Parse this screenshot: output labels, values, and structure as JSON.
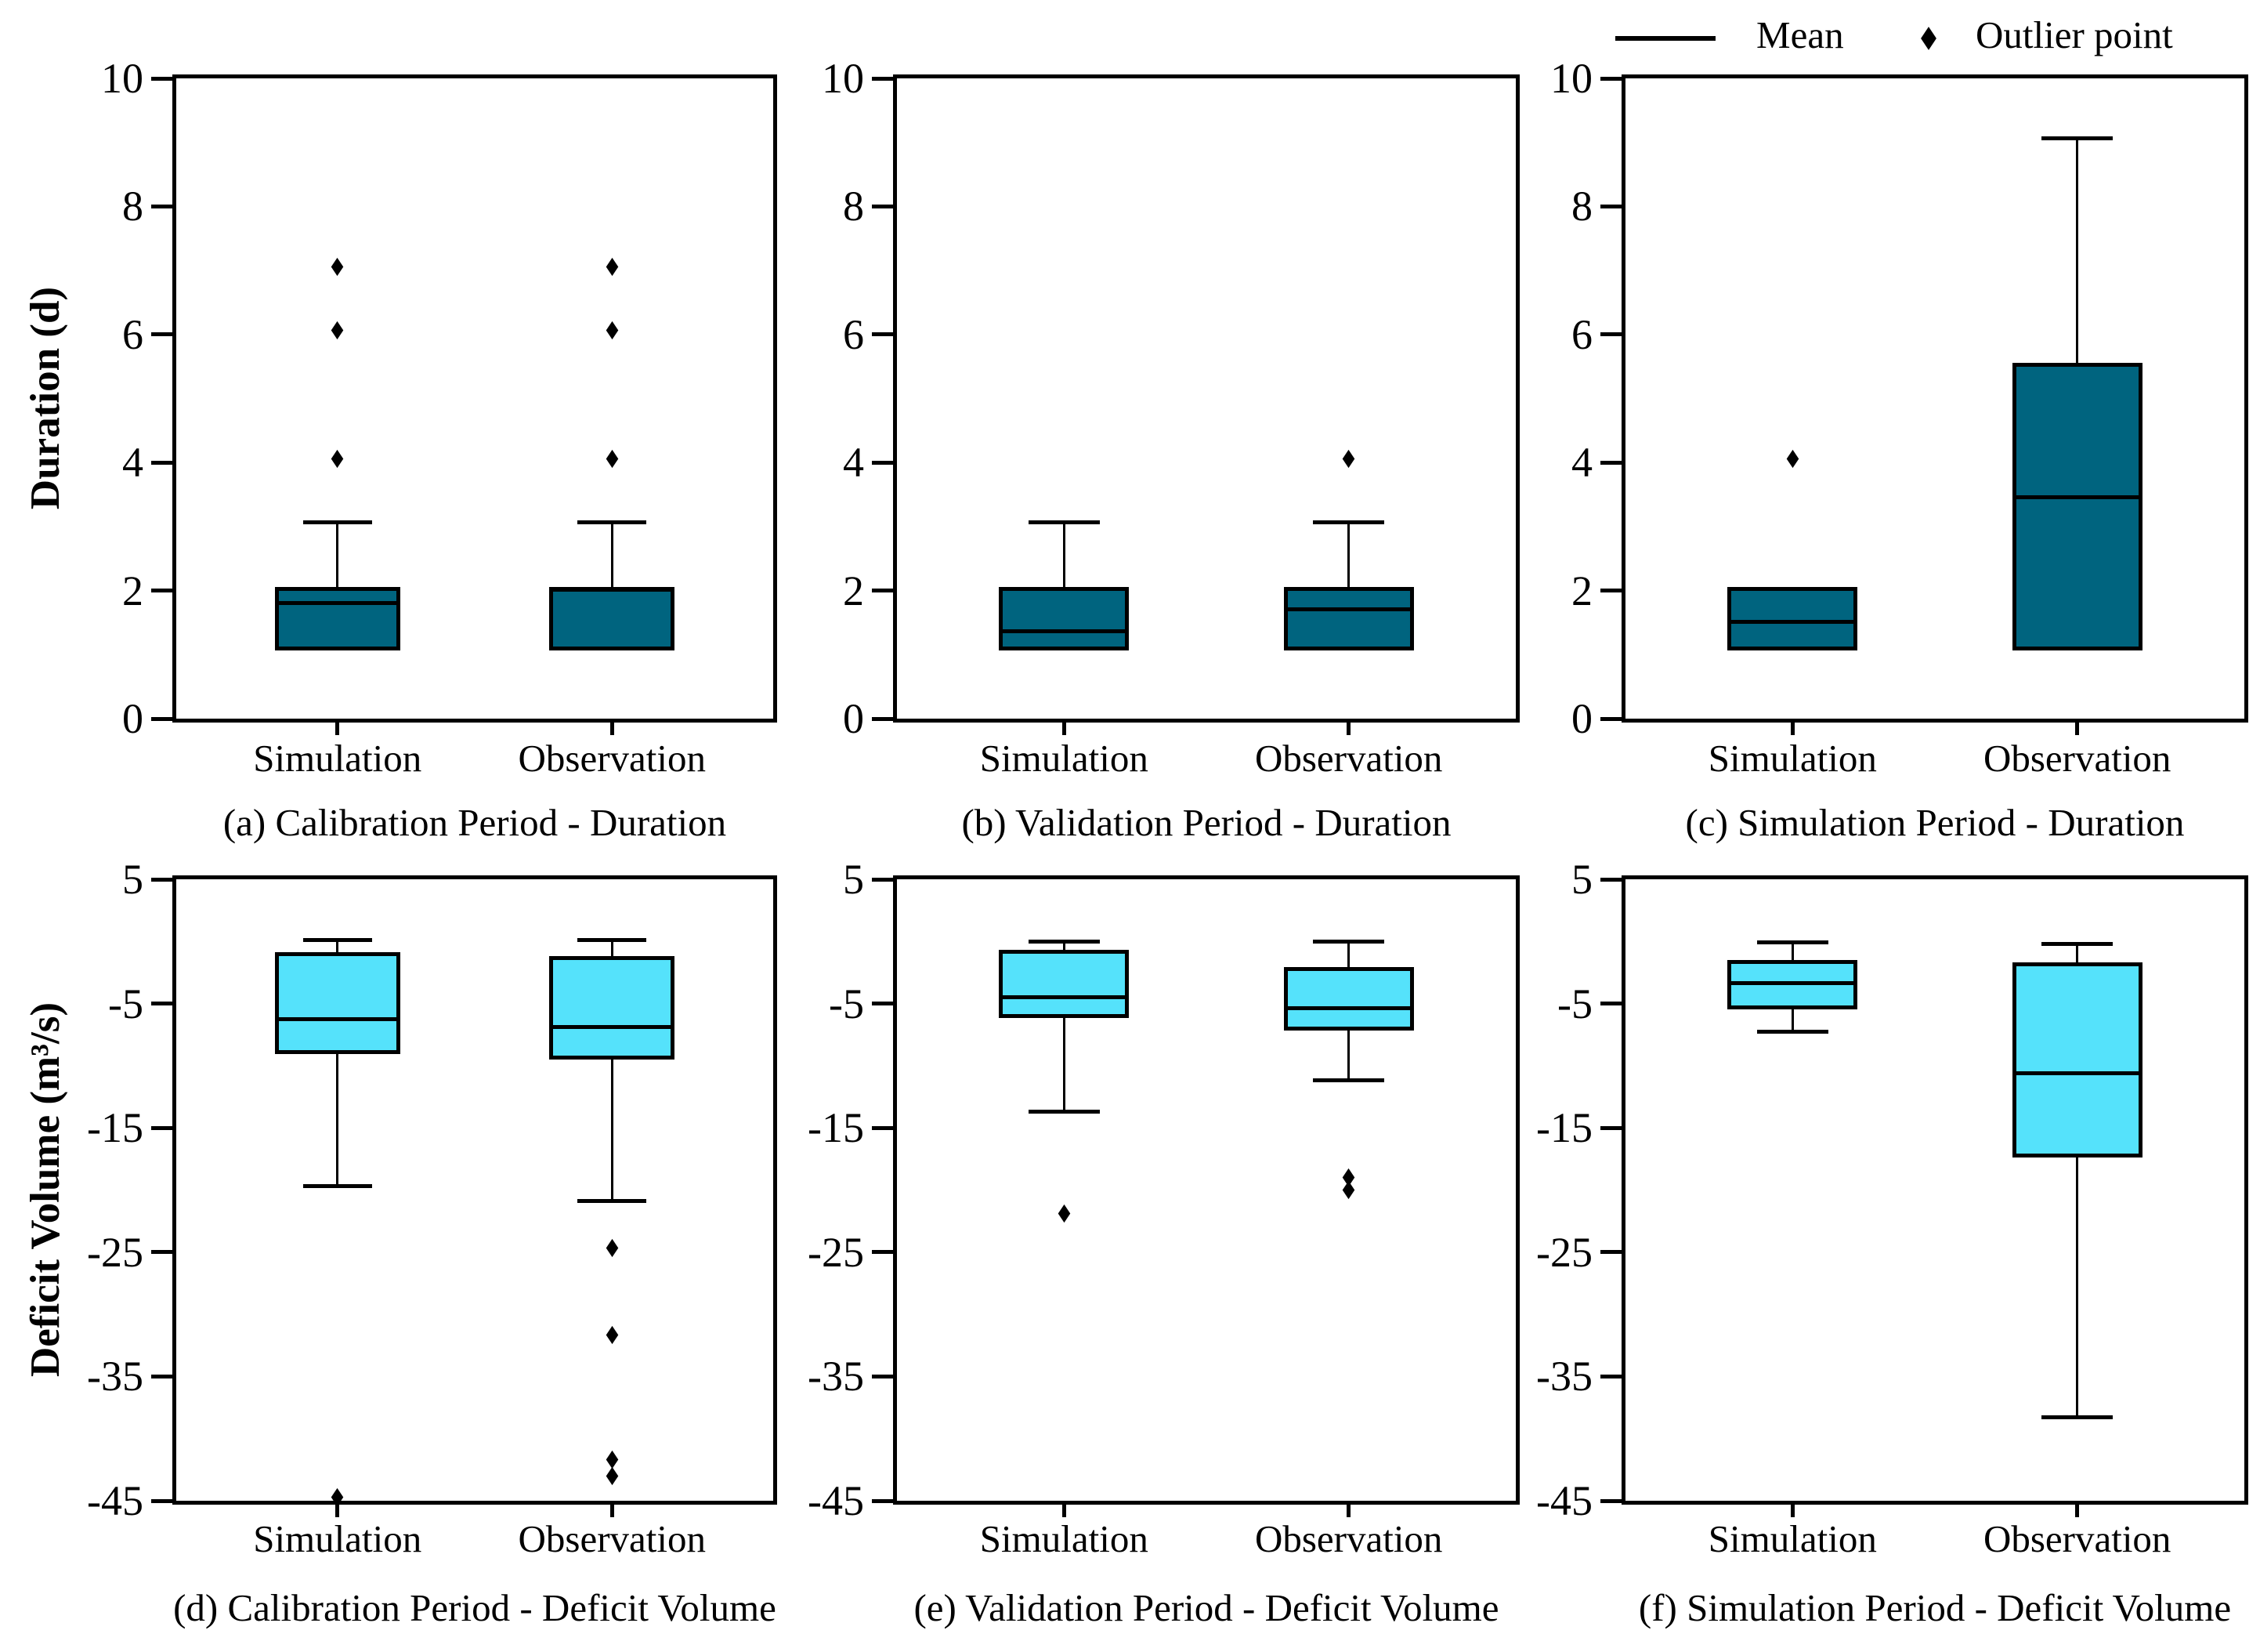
{
  "figure": {
    "background": "#ffffff",
    "legend": {
      "mean_label": "Mean",
      "outlier_label": "Outlier point"
    },
    "colors": {
      "duration_box_fill": "#00647f",
      "deficit_box_fill": "#55e2fb",
      "line_color": "#000000"
    }
  },
  "chart_data": [
    {
      "type": "box",
      "id": "a",
      "row": 0,
      "col": 0,
      "caption": "(a) Calibration Period - Duration",
      "ylabel": "Duration (d)",
      "ylim": [
        0,
        10
      ],
      "yticks": [
        10,
        8,
        6,
        4,
        2,
        0
      ],
      "grid": false,
      "box_color": "#00647f",
      "categories": [
        "Simulation",
        "Observation"
      ],
      "series": [
        {
          "name": "Simulation",
          "q1": 1,
          "q3": 2,
          "mean": 1.75,
          "whisker_high": 3,
          "whisker_low": null,
          "outliers": [
            4,
            6,
            7
          ]
        },
        {
          "name": "Observation",
          "q1": 1,
          "q3": 2,
          "mean": 1.95,
          "whisker_high": 3,
          "whisker_low": null,
          "outliers": [
            4,
            6,
            7
          ]
        }
      ]
    },
    {
      "type": "box",
      "id": "b",
      "row": 0,
      "col": 1,
      "caption": "(b) Validation Period - Duration",
      "ylabel": "Duration (d)",
      "ylim": [
        0,
        10
      ],
      "yticks": [
        10,
        8,
        6,
        4,
        2,
        0
      ],
      "grid": false,
      "box_color": "#00647f",
      "categories": [
        "Simulation",
        "Observation"
      ],
      "series": [
        {
          "name": "Simulation",
          "q1": 1,
          "q3": 2,
          "mean": 1.3,
          "whisker_high": 3,
          "whisker_low": null,
          "outliers": []
        },
        {
          "name": "Observation",
          "q1": 1,
          "q3": 2,
          "mean": 1.65,
          "whisker_high": 3,
          "whisker_low": null,
          "outliers": [
            4
          ]
        }
      ]
    },
    {
      "type": "box",
      "id": "c",
      "row": 0,
      "col": 2,
      "caption": "(c) Simulation Period - Duration",
      "ylabel": "Duration (d)",
      "ylim": [
        0,
        10
      ],
      "yticks": [
        10,
        8,
        6,
        4,
        2,
        0
      ],
      "grid": false,
      "box_color": "#00647f",
      "categories": [
        "Simulation",
        "Observation"
      ],
      "series": [
        {
          "name": "Simulation",
          "q1": 1,
          "q3": 2,
          "mean": 1.45,
          "whisker_high": null,
          "whisker_low": null,
          "outliers": [
            4
          ]
        },
        {
          "name": "Observation",
          "q1": 1,
          "q3": 5.5,
          "mean": 3.4,
          "whisker_high": 9,
          "whisker_low": null,
          "outliers": []
        }
      ]
    },
    {
      "type": "box",
      "id": "d",
      "row": 1,
      "col": 0,
      "caption": "(d) Calibration Period - Deficit Volume",
      "ylabel": "Deficit Volume (m³/s)",
      "ylim": [
        -45,
        5
      ],
      "yticks": [
        5,
        -5,
        -15,
        -25,
        -35,
        -45
      ],
      "grid": false,
      "box_color": "#55e2fb",
      "categories": [
        "Simulation",
        "Observation"
      ],
      "series": [
        {
          "name": "Simulation",
          "q1": -9.4,
          "q3": -1.2,
          "mean": -6.6,
          "whisker_high": -0.2,
          "whisker_low": -20.0,
          "outliers": [
            -45
          ]
        },
        {
          "name": "Observation",
          "q1": -9.8,
          "q3": -1.5,
          "mean": -7.2,
          "whisker_high": -0.2,
          "whisker_low": -21.2,
          "outliers": [
            -25,
            -32,
            -42,
            -43.3
          ]
        }
      ]
    },
    {
      "type": "box",
      "id": "e",
      "row": 1,
      "col": 1,
      "caption": "(e) Validation Period - Deficit Volume",
      "ylabel": "Deficit Volume (m³/s)",
      "ylim": [
        -45,
        5
      ],
      "yticks": [
        5,
        -5,
        -15,
        -25,
        -35,
        -45
      ],
      "grid": false,
      "box_color": "#55e2fb",
      "categories": [
        "Simulation",
        "Observation"
      ],
      "series": [
        {
          "name": "Simulation",
          "q1": -6.5,
          "q3": -1.0,
          "mean": -4.8,
          "whisker_high": -0.3,
          "whisker_low": -14.0,
          "outliers": [
            -22.2
          ]
        },
        {
          "name": "Observation",
          "q1": -7.5,
          "q3": -2.4,
          "mean": -5.7,
          "whisker_high": -0.3,
          "whisker_low": -11.5,
          "outliers": [
            -19.3,
            -20.3
          ]
        }
      ]
    },
    {
      "type": "box",
      "id": "f",
      "row": 1,
      "col": 2,
      "caption": "(f) Simulation Period - Deficit Volume",
      "ylabel": "Deficit Volume (m³/s)",
      "ylim": [
        -45,
        5
      ],
      "yticks": [
        5,
        -5,
        -15,
        -25,
        -35,
        -45
      ],
      "grid": false,
      "box_color": "#55e2fb",
      "categories": [
        "Simulation",
        "Observation"
      ],
      "series": [
        {
          "name": "Simulation",
          "q1": -5.8,
          "q3": -1.8,
          "mean": -3.7,
          "whisker_high": -0.4,
          "whisker_low": -7.6,
          "outliers": []
        },
        {
          "name": "Observation",
          "q1": -17.7,
          "q3": -2.0,
          "mean": -10.9,
          "whisker_high": -0.5,
          "whisker_low": -38.6,
          "outliers": []
        }
      ]
    }
  ]
}
